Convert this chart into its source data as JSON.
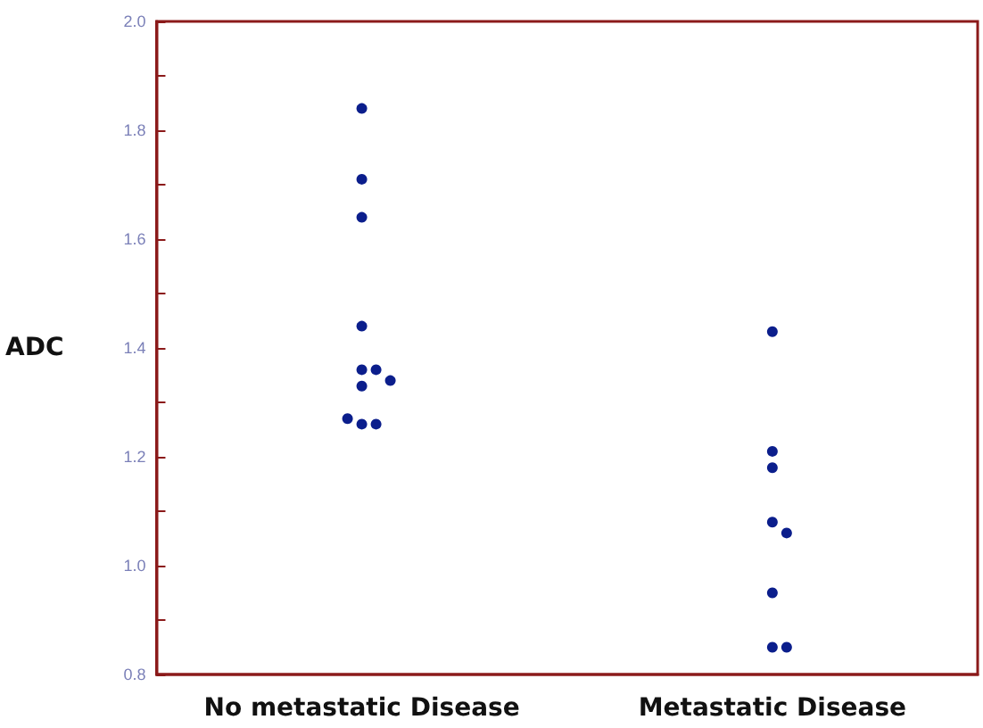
{
  "chart_data": {
    "type": "scatter",
    "ylabel": "ADC",
    "categories": [
      "No metastatic Disease",
      "Metastatic Disease"
    ],
    "series": [
      {
        "color": "#0b1e8c",
        "x": [
          "No metastatic Disease",
          "No metastatic Disease",
          "No metastatic Disease",
          "No metastatic Disease",
          "No metastatic Disease",
          "No metastatic Disease",
          "No metastatic Disease",
          "No metastatic Disease",
          "No metastatic Disease",
          "No metastatic Disease",
          "No metastatic Disease",
          "Metastatic Disease",
          "Metastatic Disease",
          "Metastatic Disease",
          "Metastatic Disease",
          "Metastatic Disease",
          "Metastatic Disease",
          "Metastatic Disease",
          "Metastatic Disease"
        ],
        "values": [
          1.84,
          1.71,
          1.64,
          1.44,
          1.36,
          1.36,
          1.33,
          1.34,
          1.26,
          1.26,
          1.27,
          1.43,
          1.21,
          1.18,
          1.08,
          1.06,
          0.95,
          0.85,
          0.85
        ]
      }
    ],
    "ylim": [
      0.8,
      2.0
    ],
    "yticks": [
      {
        "value": 0.8,
        "label": "0.8"
      },
      {
        "value": 0.9,
        "label": null
      },
      {
        "value": 1,
        "label": "1.0"
      },
      {
        "value": 1.1,
        "label": null
      },
      {
        "value": 1.2,
        "label": "1.2"
      },
      {
        "value": 1.3,
        "label": null
      },
      {
        "value": 1.4,
        "label": "1.4"
      },
      {
        "value": 1.5,
        "label": null
      },
      {
        "value": 1.6,
        "label": "1.6"
      },
      {
        "value": 1.7,
        "label": null
      },
      {
        "value": 1.8,
        "label": "1.8"
      },
      {
        "value": 1.9,
        "label": null
      },
      {
        "value": 2,
        "label": "2.0"
      }
    ],
    "grid": false,
    "marker": "circle"
  }
}
